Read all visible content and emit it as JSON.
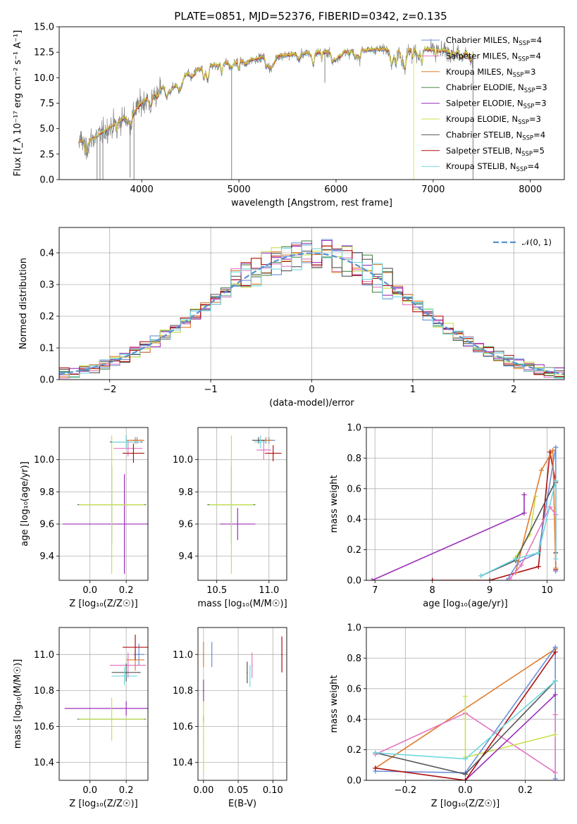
{
  "figure_title": "PLATE=0851, MJD=52376, FIBERID=0342, z=0.135",
  "colors": {
    "Chabrier MILES": "#6a8fd8",
    "Salpeter MILES": "#e377c2",
    "Kroupa MILES": "#e07b2e",
    "Chabrier ELODIE": "#4a8a4a",
    "Salpeter ELODIE": "#9b30b8",
    "Kroupa ELODIE": "#c8e04c",
    "Chabrier STELIB": "#555555",
    "Salpeter STELIB": "#b01010",
    "Kroupa STELIB": "#6fd8e0",
    "data": "#808080",
    "normal": "#5b8fd0"
  },
  "chart_data": [
    {
      "id": "spectrum",
      "type": "line",
      "xlabel": "wavelength [Angstrom, rest frame]",
      "ylabel": "Flux [f_λ 10⁻¹⁷ erg cm⁻² s⁻¹ A⁻¹]",
      "xlim": [
        3150,
        8350
      ],
      "ylim": [
        0,
        15
      ],
      "xticks": [
        4000,
        5000,
        6000,
        7000,
        8000
      ],
      "yticks": [
        0.0,
        2.5,
        5.0,
        7.5,
        10.0,
        12.5,
        15.0
      ],
      "xtick_labels": [
        "4000",
        "5000",
        "6000",
        "7000",
        "8000"
      ],
      "ytick_labels": [
        "0.0",
        "2.5",
        "5.0",
        "7.5",
        "10.0",
        "12.5",
        "15.0"
      ],
      "grid": false,
      "legend_position": "right",
      "legend": [
        {
          "name": "Chabrier MILES",
          "n": "4"
        },
        {
          "name": "Salpeter MILES",
          "n": "4"
        },
        {
          "name": "Kroupa MILES",
          "n": "3"
        },
        {
          "name": "Chabrier ELODIE",
          "n": "3"
        },
        {
          "name": "Salpeter ELODIE",
          "n": "3"
        },
        {
          "name": "Kroupa ELODIE",
          "n": "3"
        },
        {
          "name": "Chabrier STELIB",
          "n": "4"
        },
        {
          "name": "Salpeter STELIB",
          "n": "5"
        },
        {
          "name": "Kroupa STELIB",
          "n": "4"
        }
      ],
      "continuum": {
        "x": [
          3350,
          3500,
          3700,
          3900,
          4000,
          4150,
          4300,
          4500,
          4700,
          4900,
          5100,
          5300,
          5500,
          5700,
          5900,
          6100,
          6300,
          6500,
          6700,
          6900,
          7100,
          7300,
          7420
        ],
        "y": [
          3.7,
          4.0,
          5.3,
          6.5,
          7.5,
          8.7,
          9.6,
          10.5,
          11.2,
          11.5,
          11.7,
          12.1,
          12.2,
          12.4,
          12.5,
          12.6,
          12.7,
          12.8,
          12.7,
          12.8,
          12.6,
          12.5,
          12.4
        ]
      }
    },
    {
      "id": "residuals",
      "type": "histogram",
      "xlabel": "(data-model)/error",
      "ylabel": "Normed distribution",
      "xlim": [
        -2.5,
        2.5
      ],
      "ylim": [
        0,
        0.48
      ],
      "xticks": [
        -2,
        -1,
        0,
        1,
        2
      ],
      "yticks": [
        0.0,
        0.1,
        0.2,
        0.3,
        0.4
      ],
      "xtick_labels": [
        "−2",
        "−1",
        "0",
        "1",
        "2"
      ],
      "ytick_labels": [
        "0.0",
        "0.1",
        "0.2",
        "0.3",
        "0.4"
      ],
      "grid": true,
      "legend_label": "𝒩(0, 1)",
      "legend_position": "top-right",
      "bin_width": 0.1
    },
    {
      "id": "age-vs-Z",
      "type": "scatter",
      "xlabel": "Z [log₁₀(Z/Z☉)]",
      "ylabel": "age  [log₁₀(age/yr)]",
      "xlim": [
        -0.17,
        0.32
      ],
      "ylim": [
        9.25,
        10.2
      ],
      "xticks": [
        0.0,
        0.2
      ],
      "yticks": [
        9.4,
        9.6,
        9.8,
        10.0
      ],
      "xtick_labels": [
        "0.0",
        "0.2"
      ],
      "ytick_labels": [
        "9.4",
        "9.6",
        "9.8",
        "10.0"
      ],
      "grid": true,
      "points": [
        {
          "s": "Chabrier MILES",
          "x": 0.26,
          "xe": 0.03,
          "y": 10.12,
          "ye": 0.02
        },
        {
          "s": "Salpeter MILES",
          "x": 0.21,
          "xe": 0.08,
          "y": 10.07,
          "ye": 0.05
        },
        {
          "s": "Kroupa MILES",
          "x": 0.25,
          "xe": 0.05,
          "y": 10.12,
          "ye": 0.02
        },
        {
          "s": "Chabrier ELODIE",
          "x": 0.12,
          "xe": 0.19,
          "y": 9.72,
          "ye": 0.24
        },
        {
          "s": "Salpeter ELODIE",
          "x": 0.19,
          "xe": 0.34,
          "y": 9.6,
          "ye": 0.31
        },
        {
          "s": "Kroupa ELODIE",
          "x": 0.12,
          "xe": 0.18,
          "y": 9.72,
          "ye": 0.43
        },
        {
          "s": "Chabrier STELIB",
          "x": 0.2,
          "xe": 0.09,
          "y": 10.11,
          "ye": 0.04
        },
        {
          "s": "Salpeter STELIB",
          "x": 0.24,
          "xe": 0.06,
          "y": 10.04,
          "ye": 0.06
        },
        {
          "s": "Kroupa STELIB",
          "x": 0.2,
          "xe": 0.08,
          "y": 10.11,
          "ye": 0.04
        }
      ]
    },
    {
      "id": "age-vs-mass",
      "type": "scatter",
      "xlabel": "mass [log₁₀(M/M☉)]",
      "ylabel": "",
      "xlim": [
        10.32,
        11.17
      ],
      "ylim": [
        9.25,
        10.2
      ],
      "xticks": [
        10.5,
        11.0
      ],
      "yticks": [
        9.4,
        9.6,
        9.8,
        10.0
      ],
      "xtick_labels": [
        "10.5",
        "11.0"
      ],
      "ytick_labels": [
        "9.4",
        "9.6",
        "9.8",
        "10.0"
      ],
      "grid": true,
      "points": [
        {
          "s": "Chabrier MILES",
          "x": 11.0,
          "xe": 0.06,
          "y": 10.12,
          "ye": 0.02
        },
        {
          "s": "Salpeter MILES",
          "x": 10.95,
          "xe": 0.07,
          "y": 10.06,
          "ye": 0.06
        },
        {
          "s": "Kroupa MILES",
          "x": 10.97,
          "xe": 0.06,
          "y": 10.12,
          "ye": 0.02
        },
        {
          "s": "Chabrier ELODIE",
          "x": 10.64,
          "xe": 0.23,
          "y": 9.72,
          "ye": 0.24
        },
        {
          "s": "Salpeter ELODIE",
          "x": 10.7,
          "xe": 0.17,
          "y": 9.6,
          "ye": 0.1
        },
        {
          "s": "Kroupa ELODIE",
          "x": 10.64,
          "xe": 0.21,
          "y": 9.72,
          "ye": 0.43
        },
        {
          "s": "Chabrier STELIB",
          "x": 10.9,
          "xe": 0.06,
          "y": 10.12,
          "ye": 0.02
        },
        {
          "s": "Salpeter STELIB",
          "x": 11.04,
          "xe": 0.08,
          "y": 10.04,
          "ye": 0.05
        },
        {
          "s": "Kroupa STELIB",
          "x": 10.92,
          "xe": 0.06,
          "y": 10.11,
          "ye": 0.04
        }
      ]
    },
    {
      "id": "mass-vs-Z",
      "type": "scatter",
      "xlabel": "Z [log₁₀(Z/Z☉)]",
      "ylabel": "mass [log₁₀(M/M☉)]",
      "xlim": [
        -0.17,
        0.32
      ],
      "ylim": [
        10.3,
        11.15
      ],
      "xticks": [
        0.0,
        0.2
      ],
      "yticks": [
        10.4,
        10.6,
        10.8,
        11.0
      ],
      "xtick_labels": [
        "0.0",
        "0.2"
      ],
      "ytick_labels": [
        "10.4",
        "10.6",
        "10.8",
        "11.0"
      ],
      "grid": true,
      "points": [
        {
          "s": "Chabrier MILES",
          "x": 0.27,
          "xe": 0.03,
          "y": 11.0,
          "ye": 0.06
        },
        {
          "s": "Salpeter MILES",
          "x": 0.21,
          "xe": 0.1,
          "y": 10.94,
          "ye": 0.07
        },
        {
          "s": "Kroupa MILES",
          "x": 0.25,
          "xe": 0.05,
          "y": 10.97,
          "ye": 0.06
        },
        {
          "s": "Chabrier ELODIE",
          "x": 0.12,
          "xe": 0.19,
          "y": 10.64,
          "ye": 0.0
        },
        {
          "s": "Salpeter ELODIE",
          "x": 0.2,
          "xe": 0.34,
          "y": 10.7,
          "ye": 0.04
        },
        {
          "s": "Kroupa ELODIE",
          "x": 0.12,
          "xe": 0.18,
          "y": 10.64,
          "ye": 0.12
        },
        {
          "s": "Chabrier STELIB",
          "x": 0.2,
          "xe": 0.08,
          "y": 10.9,
          "ye": 0.05
        },
        {
          "s": "Salpeter STELIB",
          "x": 0.25,
          "xe": 0.07,
          "y": 11.04,
          "ye": 0.07
        },
        {
          "s": "Kroupa STELIB",
          "x": 0.19,
          "xe": 0.07,
          "y": 10.88,
          "ye": 0.05
        }
      ]
    },
    {
      "id": "mass-vs-ebv",
      "type": "scatter",
      "xlabel": "E(B-V)",
      "ylabel": "",
      "xlim": [
        -0.008,
        0.12
      ],
      "ylim": [
        10.3,
        11.15
      ],
      "xticks": [
        0.0,
        0.05,
        0.1
      ],
      "yticks": [
        10.4,
        10.6,
        10.8,
        11.0
      ],
      "xtick_labels": [
        "0.00",
        "0.05",
        "0.10"
      ],
      "ytick_labels": [
        "10.4",
        "10.6",
        "10.8",
        "11.0"
      ],
      "grid": true,
      "points": [
        {
          "s": "Chabrier MILES",
          "x": 0.012,
          "y": 11.0,
          "ye": 0.07
        },
        {
          "s": "Salpeter MILES",
          "x": 0.07,
          "y": 10.94,
          "ye": 0.07
        },
        {
          "s": "Kroupa MILES",
          "x": 0.0,
          "y": 11.0,
          "ye": 0.07
        },
        {
          "s": "Chabrier ELODIE",
          "x": 0.0,
          "y": 10.64,
          "ye": 0.02
        },
        {
          "s": "Salpeter ELODIE",
          "x": 0.0,
          "y": 10.8,
          "ye": 0.06
        },
        {
          "s": "Kroupa ELODIE",
          "x": 0.0,
          "y": 10.54,
          "ye": 0.2
        },
        {
          "s": "Chabrier STELIB",
          "x": 0.063,
          "y": 10.9,
          "ye": 0.06
        },
        {
          "s": "Salpeter STELIB",
          "x": 0.113,
          "y": 11.0,
          "ye": 0.1
        },
        {
          "s": "Kroupa STELIB",
          "x": 0.067,
          "y": 10.88,
          "ye": 0.06
        }
      ]
    },
    {
      "id": "massweight-vs-age",
      "type": "line",
      "xlabel": "age  [log₁₀(age/yr)]",
      "ylabel": "mass weight",
      "xlim": [
        6.85,
        10.3
      ],
      "ylim": [
        0,
        1
      ],
      "xticks": [
        7,
        8,
        9,
        10
      ],
      "yticks": [
        0.0,
        0.2,
        0.4,
        0.6,
        0.8,
        1.0
      ],
      "xtick_labels": [
        "7",
        "8",
        "9",
        "10"
      ],
      "ytick_labels": [
        "0.0",
        "0.2",
        "0.4",
        "0.6",
        "0.8",
        "1.0"
      ],
      "grid": true,
      "series": [
        {
          "name": "Salpeter ELODIE",
          "x": [
            6.95,
            9.6,
            9.6
          ],
          "y": [
            0.0,
            0.44,
            0.56
          ]
        },
        {
          "name": "Salpeter STELIB",
          "x": [
            8.0,
            9.0,
            9.85,
            10.05,
            10.15,
            10.15
          ],
          "y": [
            0.0,
            0.0,
            0.09,
            0.84,
            0.64,
            0.07
          ]
        },
        {
          "name": "Chabrier MILES",
          "x": [
            9.3,
            9.5,
            9.85,
            10.15,
            10.15
          ],
          "y": [
            0.0,
            0.12,
            0.18,
            0.87,
            0.06
          ]
        },
        {
          "name": "Kroupa MILES",
          "x": [
            9.45,
            9.9,
            10.1,
            10.15
          ],
          "y": [
            0.05,
            0.72,
            0.85,
            0.08
          ]
        },
        {
          "name": "Kroupa ELODIE",
          "x": [
            9.45,
            9.7,
            9.8
          ],
          "y": [
            0.15,
            0.3,
            0.55
          ]
        },
        {
          "name": "Salpeter MILES",
          "x": [
            9.35,
            9.55,
            10.05,
            10.15
          ],
          "y": [
            0.01,
            0.1,
            0.48,
            0.43
          ]
        },
        {
          "name": "Chabrier STELIB",
          "x": [
            8.85,
            9.45,
            10.15,
            10.15
          ],
          "y": [
            0.03,
            0.13,
            0.65,
            0.18
          ]
        },
        {
          "name": "Kroupa STELIB",
          "x": [
            8.85,
            9.45,
            9.85,
            10.15,
            10.15
          ],
          "y": [
            0.03,
            0.14,
            0.18,
            0.65,
            0.14
          ]
        }
      ]
    },
    {
      "id": "massweight-vs-Z",
      "type": "line",
      "xlabel": "Z [log₁₀(Z/Z☉)]",
      "ylabel": "mass weight",
      "xlim": [
        -0.33,
        0.33
      ],
      "ylim": [
        0,
        1
      ],
      "xticks": [
        -0.2,
        0.0,
        0.2
      ],
      "yticks": [
        0.0,
        0.2,
        0.4,
        0.6,
        0.8,
        1.0
      ],
      "xtick_labels": [
        "−0.2",
        "0.0",
        "0.2"
      ],
      "ytick_labels": [
        "0.0",
        "0.2",
        "0.4",
        "0.6",
        "0.8",
        "1.0"
      ],
      "grid": true,
      "series": [
        {
          "name": "Kroupa MILES",
          "x": [
            -0.3,
            0.3
          ],
          "y": [
            0.08,
            0.86
          ]
        },
        {
          "name": "Chabrier MILES",
          "x": [
            -0.3,
            0.0,
            0.3,
            0.3
          ],
          "y": [
            0.06,
            0.05,
            0.87,
            0.01
          ]
        },
        {
          "name": "Salpeter MILES",
          "x": [
            -0.3,
            0.0,
            0.3,
            0.3
          ],
          "y": [
            0.17,
            0.44,
            0.05,
            0.43
          ]
        },
        {
          "name": "Kroupa ELODIE",
          "x": [
            0.0,
            0.0,
            0.3
          ],
          "y": [
            0.55,
            0.15,
            0.3
          ]
        },
        {
          "name": "Salpeter ELODIE",
          "x": [
            0.0,
            0.3
          ],
          "y": [
            0.0,
            0.56
          ]
        },
        {
          "name": "Salpeter STELIB",
          "x": [
            -0.3,
            0.0,
            0.3
          ],
          "y": [
            0.08,
            0.0,
            0.84
          ]
        },
        {
          "name": "Chabrier STELIB",
          "x": [
            -0.3,
            0.0,
            0.3
          ],
          "y": [
            0.18,
            0.04,
            0.65
          ]
        },
        {
          "name": "Kroupa STELIB",
          "x": [
            -0.3,
            0.0,
            0.3
          ],
          "y": [
            0.18,
            0.14,
            0.65
          ]
        }
      ]
    }
  ]
}
